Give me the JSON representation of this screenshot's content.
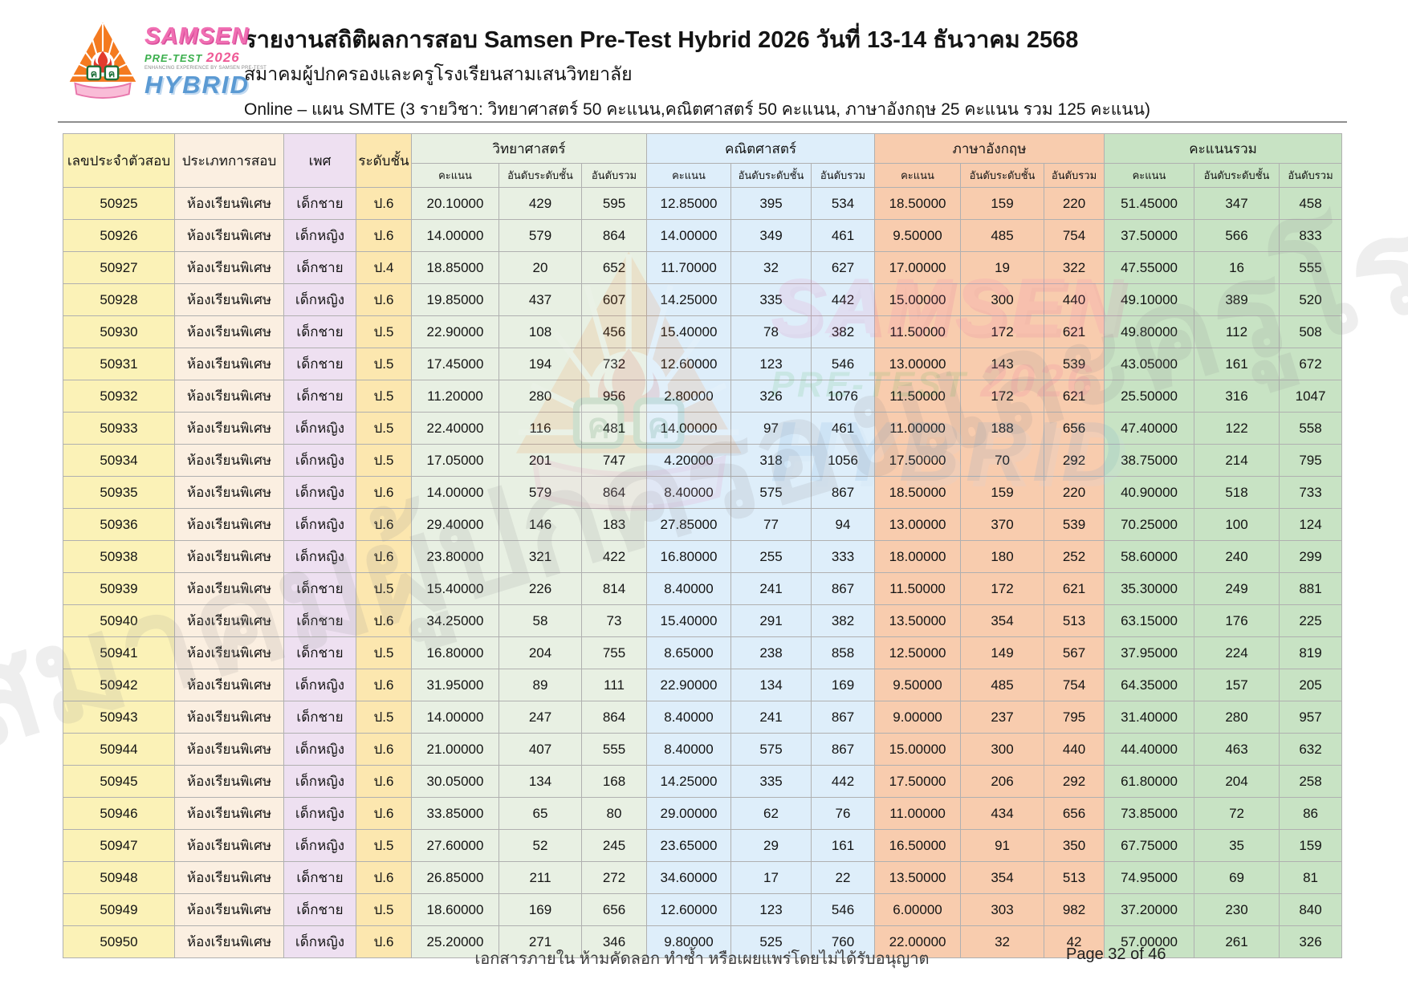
{
  "header": {
    "title": "รายงานสถิติผลการสอบ Samsen Pre-Test Hybrid 2026 วันที่ 13-14 ธันวาคม 2568",
    "subtitle": "สมาคมผู้ปกครองและครูโรงเรียนสามเสนวิทยาลัย",
    "plan": "Online – แผน SMTE (3 รายวิชา: วิทยาศาสตร์ 50 คะแนน,คณิตศาสตร์ 50 คะแนน,  ภาษาอังกฤษ 25 คะแนน รวม 125 คะแนน)"
  },
  "logo": {
    "samsen": "SAMSEN",
    "pretest": "PRE-TEST",
    "year": "2026",
    "tagline": "ENHANCING EXPERIENCE BY SAMSEN PRE-TEST",
    "hybrid": "HYBRID"
  },
  "table": {
    "headers": {
      "id": "เลขประจำตัวสอบ",
      "type": "ประเภทการสอบ",
      "gender": "เพศ",
      "grade": "ระดับชั้น",
      "science": "วิทยาศาสตร์",
      "math": "คณิตศาสตร์",
      "english": "ภาษาอังกฤษ",
      "total": "คะแนนรวม"
    },
    "sub_headers": {
      "score": "คะแนน",
      "rank_grade": "อันดับระดับชั้น",
      "rank_overall": "อันดับรวม"
    },
    "rows": [
      [
        "50925",
        "ห้องเรียนพิเศษ",
        "เด็กชาย",
        "ป.6",
        "20.10000",
        "429",
        "595",
        "12.85000",
        "395",
        "534",
        "18.50000",
        "159",
        "220",
        "51.45000",
        "347",
        "458"
      ],
      [
        "50926",
        "ห้องเรียนพิเศษ",
        "เด็กหญิง",
        "ป.6",
        "14.00000",
        "579",
        "864",
        "14.00000",
        "349",
        "461",
        "9.50000",
        "485",
        "754",
        "37.50000",
        "566",
        "833"
      ],
      [
        "50927",
        "ห้องเรียนพิเศษ",
        "เด็กชาย",
        "ป.4",
        "18.85000",
        "20",
        "652",
        "11.70000",
        "32",
        "627",
        "17.00000",
        "19",
        "322",
        "47.55000",
        "16",
        "555"
      ],
      [
        "50928",
        "ห้องเรียนพิเศษ",
        "เด็กหญิง",
        "ป.6",
        "19.85000",
        "437",
        "607",
        "14.25000",
        "335",
        "442",
        "15.00000",
        "300",
        "440",
        "49.10000",
        "389",
        "520"
      ],
      [
        "50930",
        "ห้องเรียนพิเศษ",
        "เด็กชาย",
        "ป.5",
        "22.90000",
        "108",
        "456",
        "15.40000",
        "78",
        "382",
        "11.50000",
        "172",
        "621",
        "49.80000",
        "112",
        "508"
      ],
      [
        "50931",
        "ห้องเรียนพิเศษ",
        "เด็กชาย",
        "ป.5",
        "17.45000",
        "194",
        "732",
        "12.60000",
        "123",
        "546",
        "13.00000",
        "143",
        "539",
        "43.05000",
        "161",
        "672"
      ],
      [
        "50932",
        "ห้องเรียนพิเศษ",
        "เด็กชาย",
        "ป.5",
        "11.20000",
        "280",
        "956",
        "2.80000",
        "326",
        "1076",
        "11.50000",
        "172",
        "621",
        "25.50000",
        "316",
        "1047"
      ],
      [
        "50933",
        "ห้องเรียนพิเศษ",
        "เด็กหญิง",
        "ป.5",
        "22.40000",
        "116",
        "481",
        "14.00000",
        "97",
        "461",
        "11.00000",
        "188",
        "656",
        "47.40000",
        "122",
        "558"
      ],
      [
        "50934",
        "ห้องเรียนพิเศษ",
        "เด็กหญิง",
        "ป.5",
        "17.05000",
        "201",
        "747",
        "4.20000",
        "318",
        "1056",
        "17.50000",
        "70",
        "292",
        "38.75000",
        "214",
        "795"
      ],
      [
        "50935",
        "ห้องเรียนพิเศษ",
        "เด็กหญิง",
        "ป.6",
        "14.00000",
        "579",
        "864",
        "8.40000",
        "575",
        "867",
        "18.50000",
        "159",
        "220",
        "40.90000",
        "518",
        "733"
      ],
      [
        "50936",
        "ห้องเรียนพิเศษ",
        "เด็กหญิง",
        "ป.6",
        "29.40000",
        "146",
        "183",
        "27.85000",
        "77",
        "94",
        "13.00000",
        "370",
        "539",
        "70.25000",
        "100",
        "124"
      ],
      [
        "50938",
        "ห้องเรียนพิเศษ",
        "เด็กหญิง",
        "ป.6",
        "23.80000",
        "321",
        "422",
        "16.80000",
        "255",
        "333",
        "18.00000",
        "180",
        "252",
        "58.60000",
        "240",
        "299"
      ],
      [
        "50939",
        "ห้องเรียนพิเศษ",
        "เด็กชาย",
        "ป.5",
        "15.40000",
        "226",
        "814",
        "8.40000",
        "241",
        "867",
        "11.50000",
        "172",
        "621",
        "35.30000",
        "249",
        "881"
      ],
      [
        "50940",
        "ห้องเรียนพิเศษ",
        "เด็กชาย",
        "ป.6",
        "34.25000",
        "58",
        "73",
        "15.40000",
        "291",
        "382",
        "13.50000",
        "354",
        "513",
        "63.15000",
        "176",
        "225"
      ],
      [
        "50941",
        "ห้องเรียนพิเศษ",
        "เด็กชาย",
        "ป.5",
        "16.80000",
        "204",
        "755",
        "8.65000",
        "238",
        "858",
        "12.50000",
        "149",
        "567",
        "37.95000",
        "224",
        "819"
      ],
      [
        "50942",
        "ห้องเรียนพิเศษ",
        "เด็กหญิง",
        "ป.6",
        "31.95000",
        "89",
        "111",
        "22.90000",
        "134",
        "169",
        "9.50000",
        "485",
        "754",
        "64.35000",
        "157",
        "205"
      ],
      [
        "50943",
        "ห้องเรียนพิเศษ",
        "เด็กชาย",
        "ป.5",
        "14.00000",
        "247",
        "864",
        "8.40000",
        "241",
        "867",
        "9.00000",
        "237",
        "795",
        "31.40000",
        "280",
        "957"
      ],
      [
        "50944",
        "ห้องเรียนพิเศษ",
        "เด็กหญิง",
        "ป.6",
        "21.00000",
        "407",
        "555",
        "8.40000",
        "575",
        "867",
        "15.00000",
        "300",
        "440",
        "44.40000",
        "463",
        "632"
      ],
      [
        "50945",
        "ห้องเรียนพิเศษ",
        "เด็กหญิง",
        "ป.6",
        "30.05000",
        "134",
        "168",
        "14.25000",
        "335",
        "442",
        "17.50000",
        "206",
        "292",
        "61.80000",
        "204",
        "258"
      ],
      [
        "50946",
        "ห้องเรียนพิเศษ",
        "เด็กหญิง",
        "ป.6",
        "33.85000",
        "65",
        "80",
        "29.00000",
        "62",
        "76",
        "11.00000",
        "434",
        "656",
        "73.85000",
        "72",
        "86"
      ],
      [
        "50947",
        "ห้องเรียนพิเศษ",
        "เด็กหญิง",
        "ป.5",
        "27.60000",
        "52",
        "245",
        "23.65000",
        "29",
        "161",
        "16.50000",
        "91",
        "350",
        "67.75000",
        "35",
        "159"
      ],
      [
        "50948",
        "ห้องเรียนพิเศษ",
        "เด็กชาย",
        "ป.6",
        "26.85000",
        "211",
        "272",
        "34.60000",
        "17",
        "22",
        "13.50000",
        "354",
        "513",
        "74.95000",
        "69",
        "81"
      ],
      [
        "50949",
        "ห้องเรียนพิเศษ",
        "เด็กชาย",
        "ป.5",
        "18.60000",
        "169",
        "656",
        "12.60000",
        "123",
        "546",
        "6.00000",
        "303",
        "982",
        "37.20000",
        "230",
        "840"
      ],
      [
        "50950",
        "ห้องเรียนพิเศษ",
        "เด็กหญิง",
        "ป.6",
        "25.20000",
        "271",
        "346",
        "9.80000",
        "525",
        "760",
        "22.00000",
        "32",
        "42",
        "57.00000",
        "261",
        "326"
      ]
    ]
  },
  "colors": {
    "id_col": "#FBF2B7",
    "type_col": "#FBEFE1",
    "gender_col": "#EEE0F1",
    "grade_col": "#FCE7AF",
    "science_col": "#E8F0E3",
    "math_col": "#DEEEFA",
    "english_col": "#F8CCAE",
    "total_col": "#C8E3C4",
    "logo_pink": "#f06eb2",
    "logo_green": "#3aaf4c",
    "logo_blue": "#5b9ad3"
  },
  "watermark": {
    "text": "สมาคมผู้ปกครองและครูโรงเรียนสามเสนวิทยาลัย"
  },
  "footer": {
    "notice": "เอกสารภายใน ห้ามคัดลอก ทำซ้ำ หรือเผยแพร่โดยไม่ได้รับอนุญาต",
    "page": "Page 32 of 46"
  }
}
